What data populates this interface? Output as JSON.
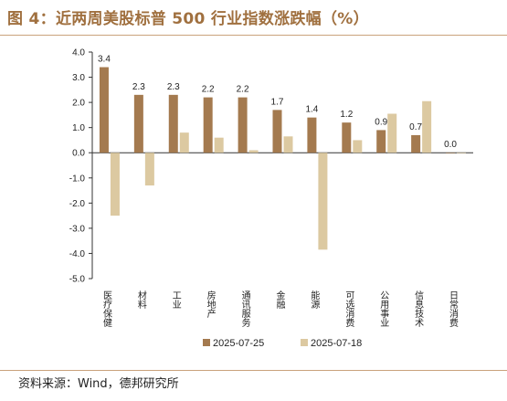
{
  "header": {
    "title": "图 4：近两周美股标普 500 行业指数涨跌幅（%）"
  },
  "footer": {
    "source": "资料来源：Wind，德邦研究所"
  },
  "colors": {
    "title": "#a0703f",
    "rule": "#c9a27c",
    "series_a": "#a47a4f",
    "series_b": "#dcc9a1"
  },
  "chart_data": {
    "type": "bar",
    "categories": [
      "医疗保健",
      "材料",
      "工业",
      "房地产",
      "通讯服务",
      "金融",
      "能源",
      "可选消费",
      "公用事业",
      "信息技术",
      "日常消费"
    ],
    "series": [
      {
        "name": "2025-07-25",
        "values": [
          3.4,
          2.3,
          2.3,
          2.2,
          2.2,
          1.7,
          1.4,
          1.2,
          0.9,
          0.7,
          0.0
        ],
        "data_labels": [
          "3.4",
          "2.3",
          "2.3",
          "2.2",
          "2.2",
          "1.7",
          "1.4",
          "1.2",
          "0.9",
          "0.7",
          "0.0"
        ]
      },
      {
        "name": "2025-07-18",
        "values": [
          -2.5,
          -1.3,
          0.8,
          0.6,
          0.1,
          0.65,
          -3.85,
          0.5,
          1.55,
          2.05,
          -0.02
        ]
      }
    ],
    "ylim": [
      -5.0,
      4.0
    ],
    "yticks": [
      4.0,
      3.0,
      2.0,
      1.0,
      0.0,
      -1.0,
      -2.0,
      -3.0,
      -4.0,
      -5.0
    ],
    "ytick_labels": [
      "4.0",
      "3.0",
      "2.0",
      "1.0",
      "0.0",
      "-1.0",
      "-2.0",
      "-3.0",
      "-4.0",
      "-5.0"
    ],
    "grid": false,
    "legend_position": "bottom"
  }
}
